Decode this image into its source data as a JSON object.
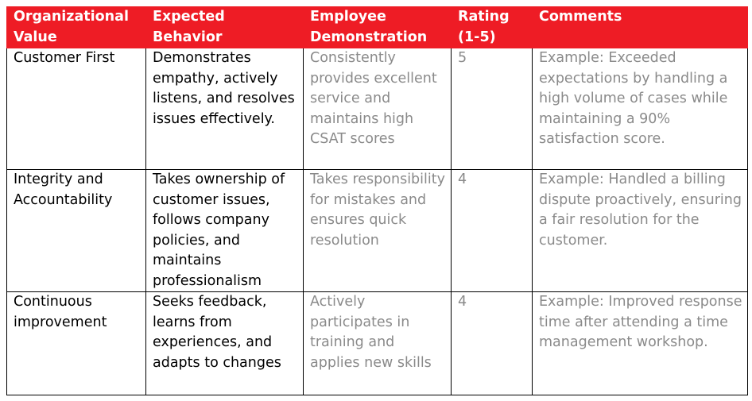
{
  "colors": {
    "header_bg": "#ee1c25",
    "header_text": "#ffffff",
    "muted_text": "#8a8a8a"
  },
  "table": {
    "headers": [
      "Organizational Value",
      "Expected Behavior",
      "Employee Demonstration",
      "Rating (1-5)",
      "Comments"
    ],
    "rows": [
      {
        "value": "Customer First",
        "behavior": "Demonstrates empathy, actively listens, and resolves issues effectively.",
        "demonstration": "Consistently provides excellent service and maintains high CSAT scores",
        "rating": "5",
        "comments": "Example: Exceeded expectations by handling a high volume of cases while maintaining a 90% satisfaction score."
      },
      {
        "value": "Integrity and Accountability",
        "behavior": "Takes ownership of customer issues, follows company policies, and maintains professionalism",
        "demonstration": "Takes responsibility for mistakes and ensures quick resolution",
        "rating": "4",
        "comments": "Example: Handled a billing dispute proactively, ensuring a fair resolution for the customer."
      },
      {
        "value": "Continuous improvement",
        "behavior": "Seeks feedback, learns from experiences, and adapts to changes",
        "demonstration": "Actively participates in training and applies new skills",
        "rating": "4",
        "comments": "Example: Improved response time after attending a time management workshop."
      }
    ]
  }
}
